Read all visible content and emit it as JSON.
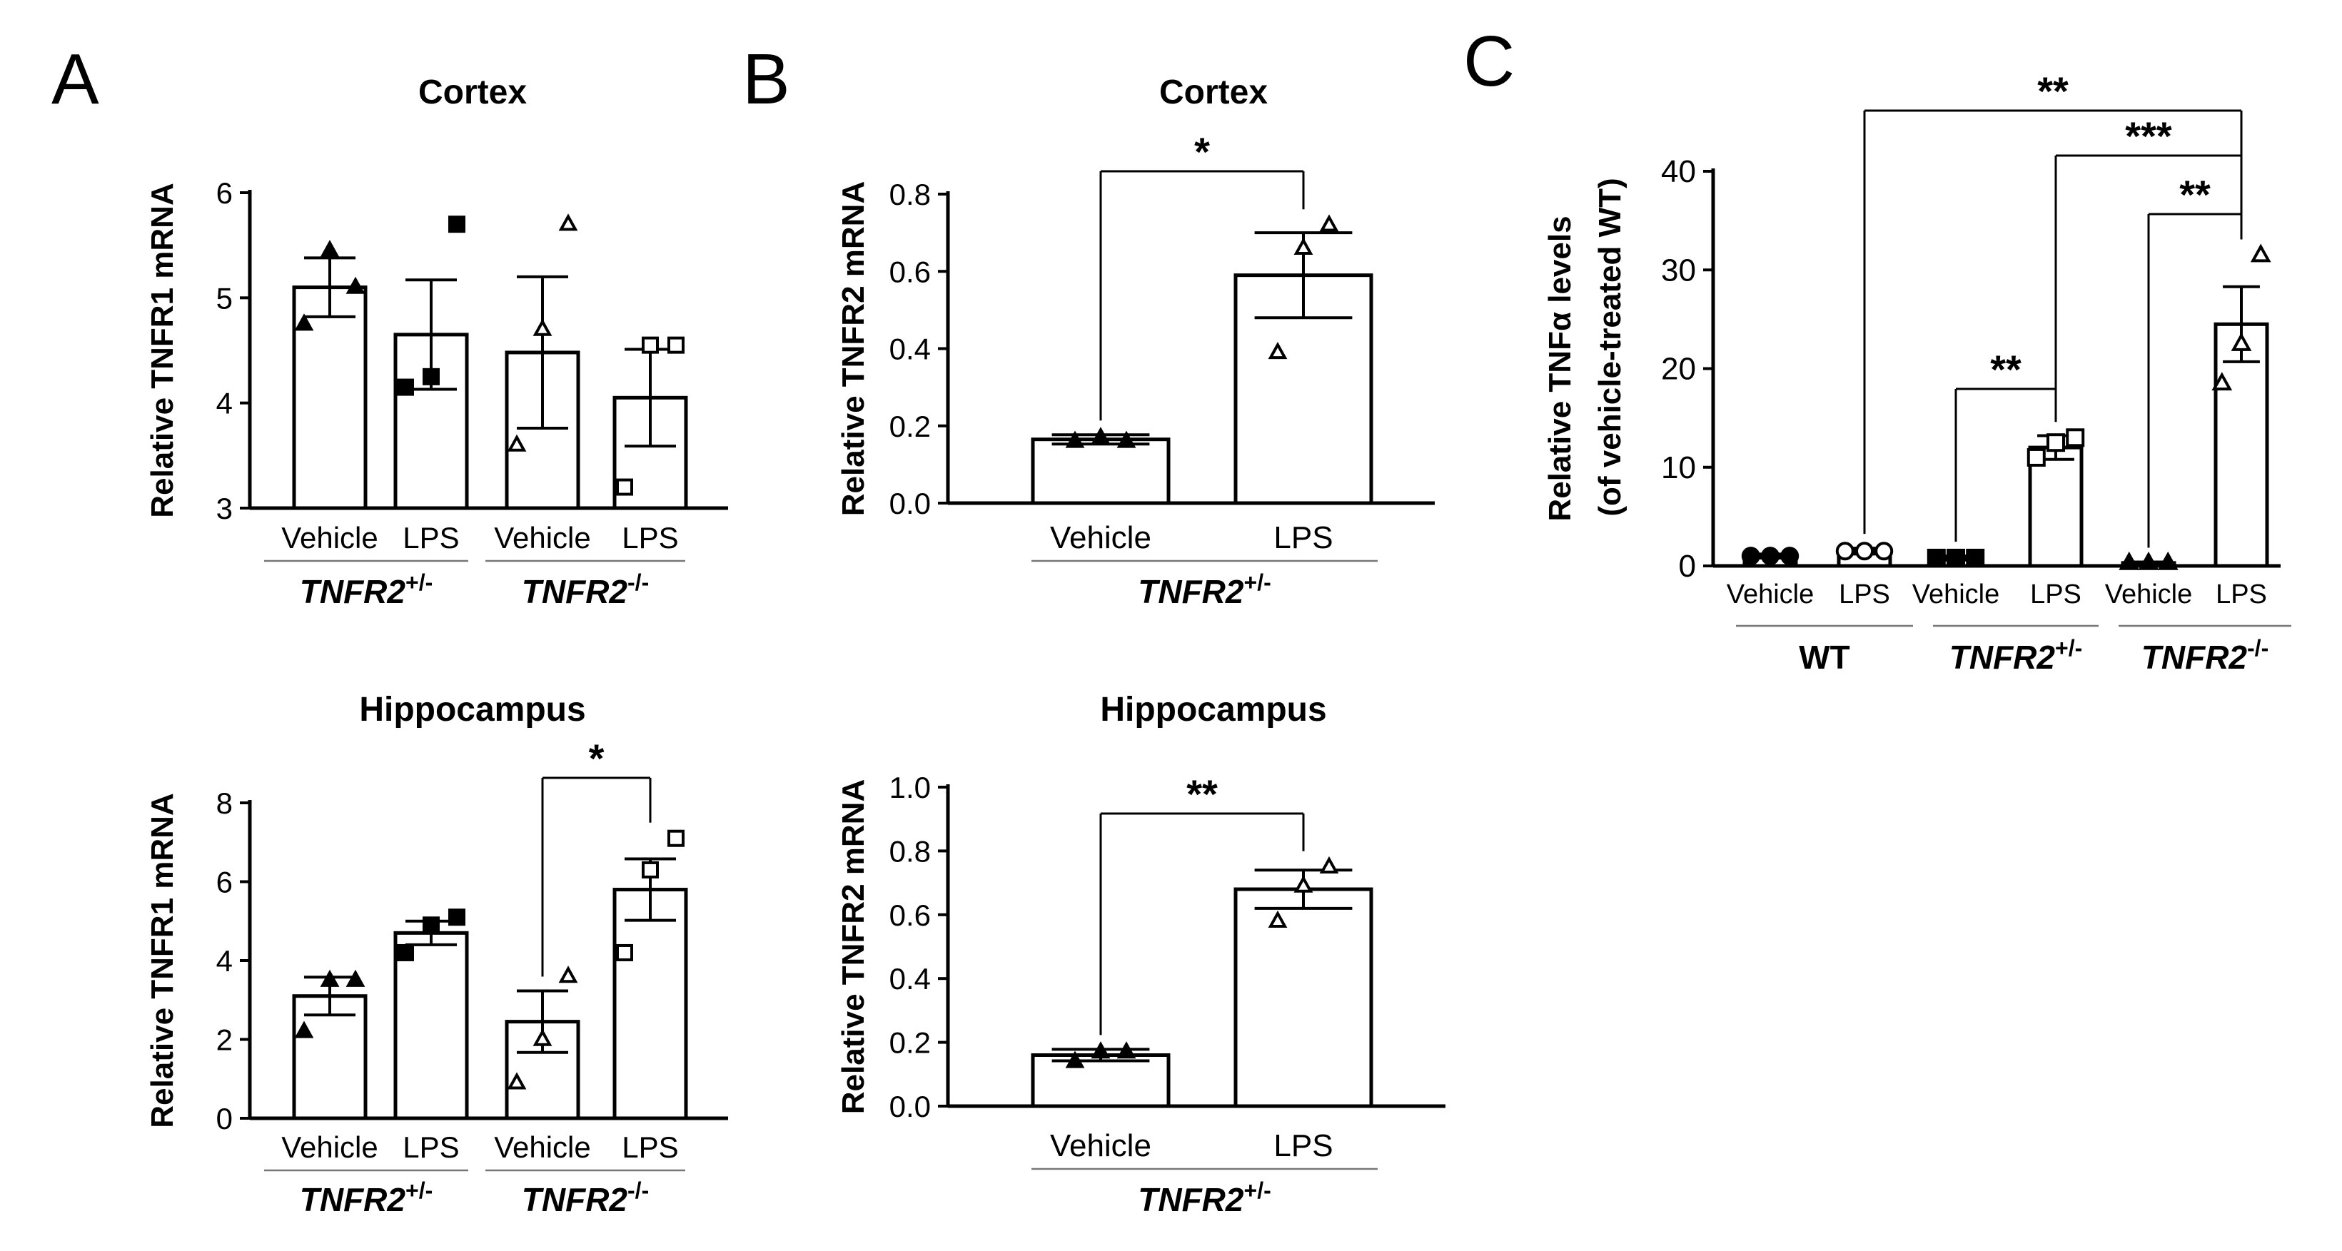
{
  "chart_data": [
    {
      "panel_letter": "A",
      "type": "bar",
      "title": "Cortex",
      "ylabel": "Relative TNFR1 mRNA",
      "ylim": [
        3,
        6
      ],
      "yticks": [
        "3",
        "4",
        "5",
        "6"
      ],
      "categories": [
        "Vehicle",
        "LPS",
        "Vehicle",
        "LPS"
      ],
      "groups": [
        {
          "label": "TNFR2",
          "sup": "+/-"
        },
        {
          "label": "TNFR2",
          "sup": "-/-"
        }
      ],
      "values": [
        5.1,
        4.65,
        4.48,
        4.05
      ],
      "sem": [
        0.28,
        0.52,
        0.72,
        0.46
      ],
      "points": [
        [
          4.75,
          5.45,
          5.1
        ],
        [
          4.15,
          4.25,
          5.7
        ],
        [
          3.6,
          4.7,
          5.7
        ],
        [
          3.2,
          4.55,
          4.55
        ]
      ],
      "markers": [
        "filled-triangle",
        "filled-square",
        "open-triangle",
        "open-square"
      ],
      "significance": []
    },
    {
      "panel_letter": "",
      "type": "bar",
      "title": "Hippocampus",
      "ylabel": "Relative TNFR1 mRNA",
      "ylim": [
        0,
        8
      ],
      "yticks": [
        "0",
        "2",
        "4",
        "6",
        "8"
      ],
      "categories": [
        "Vehicle",
        "LPS",
        "Vehicle",
        "LPS"
      ],
      "groups": [
        {
          "label": "TNFR2",
          "sup": "+/-"
        },
        {
          "label": "TNFR2",
          "sup": "-/-"
        }
      ],
      "values": [
        3.1,
        4.7,
        2.45,
        5.8
      ],
      "sem": [
        0.48,
        0.3,
        0.78,
        0.78
      ],
      "points": [
        [
          2.2,
          3.5,
          3.5
        ],
        [
          4.2,
          4.9,
          5.1
        ],
        [
          0.9,
          2.0,
          3.6
        ],
        [
          4.2,
          6.3,
          7.1
        ]
      ],
      "markers": [
        "filled-triangle",
        "filled-square",
        "open-triangle",
        "open-square"
      ],
      "significance": [
        {
          "from": 2,
          "to": 3,
          "label": "*"
        }
      ]
    },
    {
      "panel_letter": "B",
      "type": "bar",
      "title": "Cortex",
      "ylabel": "Relative TNFR2 mRNA",
      "ylim": [
        0,
        0.8
      ],
      "yticks": [
        "0.0",
        "0.2",
        "0.4",
        "0.6",
        "0.8"
      ],
      "categories": [
        "Vehicle",
        "LPS"
      ],
      "groups": [
        {
          "label": "TNFR2",
          "sup": "+/-"
        }
      ],
      "values": [
        0.165,
        0.59
      ],
      "sem": [
        0.012,
        0.11
      ],
      "points": [
        [
          0.16,
          0.17,
          0.16
        ],
        [
          0.39,
          0.66,
          0.72
        ]
      ],
      "markers": [
        "filled-triangle",
        "open-triangle"
      ],
      "significance": [
        {
          "from": 0,
          "to": 1,
          "label": "*"
        }
      ]
    },
    {
      "panel_letter": "",
      "type": "bar",
      "title": "Hippocampus",
      "ylabel": "Relative TNFR2 mRNA",
      "ylim": [
        0,
        1.0
      ],
      "yticks": [
        "0.0",
        "0.2",
        "0.4",
        "0.6",
        "0.8",
        "1.0"
      ],
      "categories": [
        "Vehicle",
        "LPS"
      ],
      "groups": [
        {
          "label": "TNFR2",
          "sup": "+/-"
        }
      ],
      "values": [
        0.16,
        0.68
      ],
      "sem": [
        0.018,
        0.06
      ],
      "points": [
        [
          0.14,
          0.17,
          0.17
        ],
        [
          0.58,
          0.69,
          0.75
        ]
      ],
      "markers": [
        "filled-triangle",
        "open-triangle"
      ],
      "significance": [
        {
          "from": 0,
          "to": 1,
          "label": "**"
        }
      ]
    },
    {
      "panel_letter": "C",
      "type": "bar",
      "title": "",
      "ylabel": "Relative TNFα levels",
      "ylabel2": "(of vehicle-treated WT)",
      "ylim": [
        0,
        40
      ],
      "yticks": [
        "0",
        "10",
        "20",
        "30",
        "40"
      ],
      "categories": [
        "Vehicle",
        "LPS",
        "Vehicle",
        "LPS",
        "Vehicle",
        "LPS"
      ],
      "groups": [
        {
          "label": "WT",
          "sup": ""
        },
        {
          "label": "TNFR2",
          "sup": "+/-"
        },
        {
          "label": "TNFR2",
          "sup": "-/-"
        }
      ],
      "values": [
        1.0,
        1.5,
        0.8,
        12.0,
        0.3,
        24.5
      ],
      "sem": [
        0.2,
        0.3,
        0.2,
        1.2,
        0.1,
        3.8
      ],
      "points": [
        [
          1.0,
          1.0,
          1.0
        ],
        [
          1.5,
          1.5,
          1.5
        ],
        [
          0.8,
          0.8,
          0.8
        ],
        [
          11.0,
          12.5,
          13.0
        ],
        [
          0.3,
          0.3,
          0.3
        ],
        [
          18.5,
          22.5,
          31.5
        ]
      ],
      "markers": [
        "filled-circle",
        "open-circle",
        "filled-square",
        "open-square",
        "filled-triangle",
        "open-triangle"
      ],
      "significance": [
        {
          "from": 2,
          "to": 3,
          "label": "**"
        },
        {
          "from": 4,
          "to": 5,
          "label": "**"
        },
        {
          "from": 3,
          "to": 5,
          "label": "***"
        },
        {
          "from": 1,
          "to": 5,
          "label": "**"
        }
      ]
    }
  ]
}
